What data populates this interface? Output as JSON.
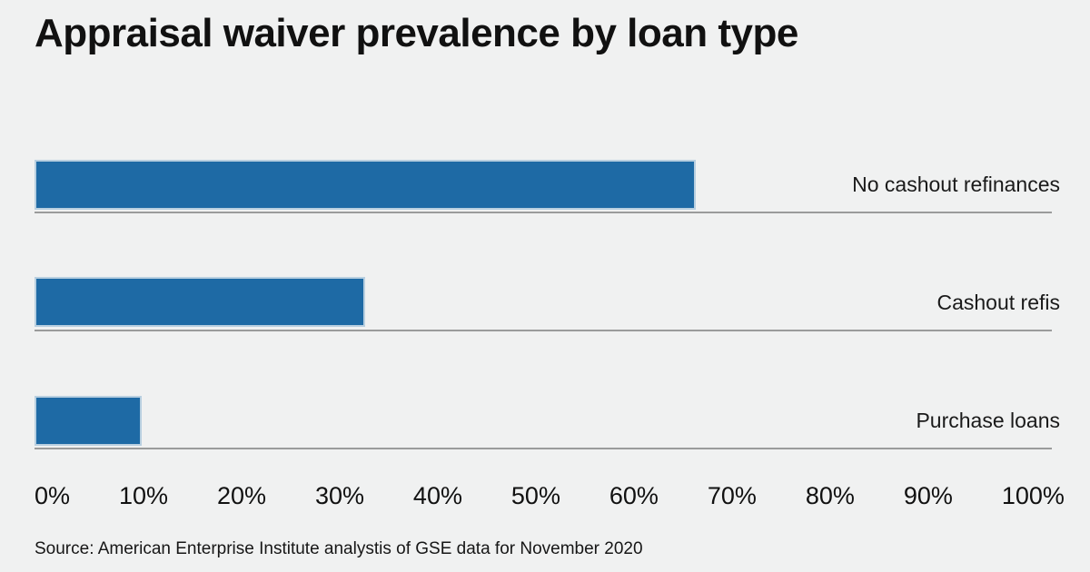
{
  "title": "Appraisal waiver prevalence by loan type",
  "source": "Source: American Enterprise Institute analystis of GSE data for November 2020",
  "colors": {
    "bar": "#1e6aa5",
    "bar_border": "#b8cfe0",
    "background": "#f0f1f1",
    "axis_line": "#9a9b9b",
    "text": "#111111"
  },
  "chart_data": {
    "type": "bar",
    "orientation": "horizontal",
    "title": "Appraisal waiver prevalence by loan type",
    "categories": [
      "No cashout refinances",
      "Cashout refis",
      "Purchase loans"
    ],
    "values": [
      65,
      32.5,
      10.5
    ],
    "unit": "%",
    "xlabel": "",
    "ylabel": "",
    "xlim": [
      0,
      100
    ],
    "x_tick_labels": [
      "0%",
      "10%",
      "20%",
      "30%",
      "40%",
      "50%",
      "60%",
      "70%",
      "80%",
      "90%",
      "100%"
    ],
    "grid": false,
    "legend": false
  }
}
